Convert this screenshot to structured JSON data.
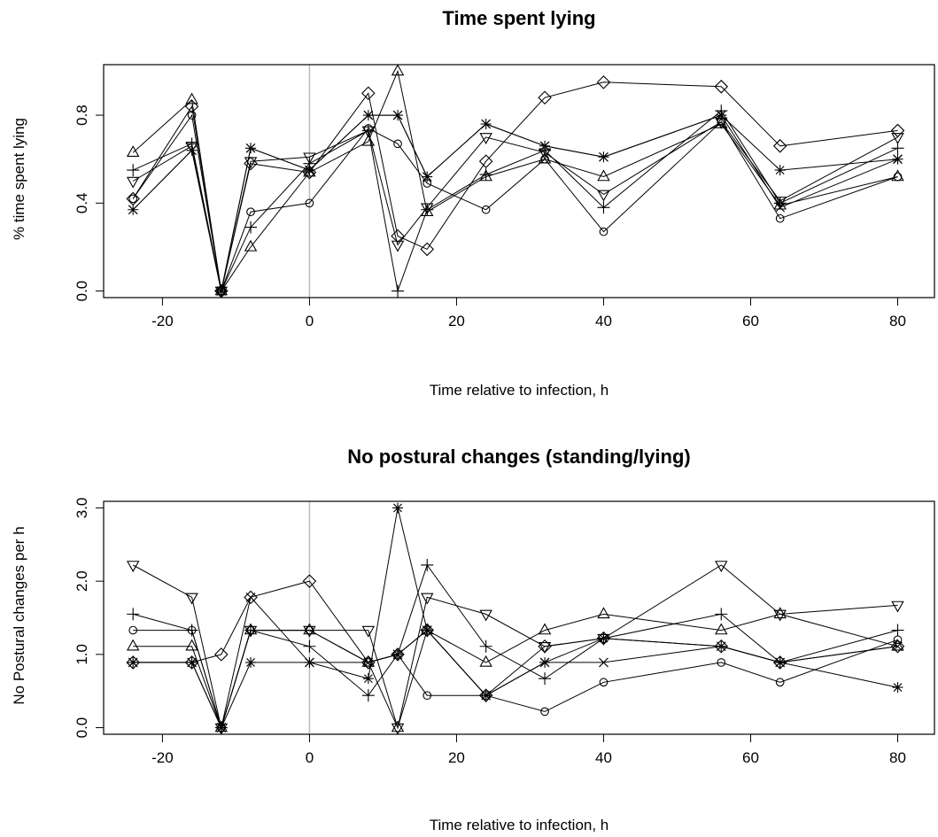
{
  "chart_data": [
    {
      "type": "line",
      "title": "Time spent lying",
      "xlabel": "Time relative to infection, h",
      "ylabel": "% time spent lying",
      "xlim": [
        -28,
        85
      ],
      "ylim": [
        -0.03,
        1.03
      ],
      "xticks": [
        -20,
        0,
        20,
        40,
        60,
        80
      ],
      "yticks": [
        0.0,
        0.4,
        0.8
      ],
      "ytick_labels": [
        "0.0",
        "0.4",
        "0.8"
      ],
      "vline": 0,
      "vline_color": "#bbbbbb",
      "grid": false,
      "series": [
        {
          "marker": "circle",
          "x": [
            -24,
            -16,
            -12,
            -8,
            0,
            8,
            12,
            16,
            24,
            32,
            40,
            56,
            64,
            80
          ],
          "y": [
            0.42,
            0.8,
            0.0,
            0.36,
            0.4,
            0.74,
            0.67,
            0.49,
            0.37,
            0.6,
            0.27,
            0.77,
            0.33,
            0.52
          ]
        },
        {
          "marker": "triangle-up",
          "x": [
            -24,
            -16,
            -12,
            -8,
            0,
            8,
            12,
            16,
            24,
            32,
            40,
            56,
            64,
            80
          ],
          "y": [
            0.63,
            0.87,
            0.0,
            0.2,
            0.54,
            0.68,
            1.0,
            0.36,
            0.52,
            0.6,
            0.52,
            0.76,
            0.39,
            0.52
          ]
        },
        {
          "marker": "plus",
          "x": [
            -24,
            -16,
            -12,
            -8,
            0,
            8,
            12,
            16,
            24,
            32,
            40,
            56,
            64,
            80
          ],
          "y": [
            0.55,
            0.67,
            0.0,
            0.29,
            0.58,
            0.73,
            0.0,
            0.37,
            0.53,
            0.64,
            0.38,
            0.82,
            0.4,
            0.65
          ]
        },
        {
          "marker": "x-cross",
          "x": [
            -24,
            -16,
            -12,
            -8,
            0,
            8,
            12,
            16,
            24,
            32,
            40,
            56,
            64,
            80
          ],
          "y": [
            0.37,
            0.64,
            0.0,
            0.65,
            0.55,
            0.8,
            0.8,
            0.52,
            0.76,
            0.66,
            0.61,
            0.8,
            0.38,
            0.6
          ]
        },
        {
          "marker": "diamond",
          "x": [
            -24,
            -16,
            -12,
            -8,
            0,
            8,
            12,
            16,
            24,
            32,
            40,
            56,
            64,
            80
          ],
          "y": [
            0.42,
            0.84,
            0.0,
            0.58,
            0.54,
            0.9,
            0.25,
            0.19,
            0.59,
            0.88,
            0.95,
            0.93,
            0.66,
            0.73
          ]
        },
        {
          "marker": "triangle-down",
          "x": [
            -24,
            -16,
            -12,
            -8,
            0,
            8,
            12,
            16,
            24,
            32,
            40,
            56,
            64,
            80
          ],
          "y": [
            0.5,
            0.66,
            0.0,
            0.59,
            0.61,
            0.73,
            0.21,
            0.38,
            0.7,
            0.63,
            0.44,
            0.77,
            0.41,
            0.7
          ]
        },
        {
          "marker": "asterisk",
          "x": [
            -24,
            -16,
            -12,
            -8,
            0,
            8,
            12,
            16,
            24,
            32,
            40,
            56,
            64,
            80
          ],
          "y": [
            0.37,
            0.64,
            0.0,
            0.65,
            0.55,
            0.8,
            0.8,
            0.52,
            0.76,
            0.66,
            0.61,
            0.8,
            0.55,
            0.6
          ]
        }
      ]
    },
    {
      "type": "line",
      "title": "No postural changes (standing/lying)",
      "xlabel": "Time relative to infection, h",
      "ylabel": "No Postural changes per h",
      "xlim": [
        -28,
        85
      ],
      "ylim": [
        -0.09,
        3.09
      ],
      "xticks": [
        -20,
        0,
        20,
        40,
        60,
        80
      ],
      "yticks": [
        0.0,
        1.0,
        2.0,
        3.0
      ],
      "ytick_labels": [
        "0.0",
        "1.0",
        "2.0",
        "3.0"
      ],
      "vline": 0,
      "vline_color": "#bbbbbb",
      "grid": false,
      "series": [
        {
          "marker": "circle",
          "x": [
            -24,
            -16,
            -12,
            -8,
            0,
            8,
            12,
            16,
            24,
            32,
            40,
            56,
            64,
            80
          ],
          "y": [
            1.33,
            1.33,
            0.0,
            1.33,
            1.33,
            0.89,
            1.0,
            0.44,
            0.44,
            0.22,
            0.62,
            0.89,
            0.62,
            1.2
          ]
        },
        {
          "marker": "triangle-up",
          "x": [
            -24,
            -16,
            -12,
            -8,
            0,
            8,
            12,
            16,
            24,
            32,
            40,
            56,
            64,
            80
          ],
          "y": [
            1.11,
            1.11,
            0.0,
            1.33,
            1.33,
            0.89,
            0.0,
            1.33,
            0.89,
            1.33,
            1.55,
            1.33,
            1.55,
            1.11
          ]
        },
        {
          "marker": "plus",
          "x": [
            -24,
            -16,
            -12,
            -8,
            0,
            8,
            12,
            16,
            24,
            32,
            40,
            56,
            64,
            80
          ],
          "y": [
            1.55,
            1.33,
            0.0,
            1.33,
            1.11,
            0.44,
            1.0,
            2.22,
            1.11,
            0.67,
            1.22,
            1.55,
            0.89,
            1.33
          ]
        },
        {
          "marker": "x-cross",
          "x": [
            -24,
            -16,
            -12,
            -8,
            0,
            8,
            12,
            16,
            24,
            32,
            40,
            56,
            64,
            80
          ],
          "y": [
            0.89,
            0.89,
            0.0,
            1.78,
            0.89,
            0.89,
            1.0,
            1.33,
            0.44,
            0.89,
            0.89,
            1.11,
            0.89,
            1.11
          ]
        },
        {
          "marker": "diamond",
          "x": [
            -24,
            -16,
            -12,
            -8,
            0,
            8,
            12,
            16,
            24,
            32,
            40,
            56,
            64,
            80
          ],
          "y": [
            0.89,
            0.89,
            1.0,
            1.78,
            2.0,
            0.89,
            1.0,
            1.33,
            0.44,
            1.11,
            1.22,
            1.11,
            0.89,
            1.11
          ]
        },
        {
          "marker": "triangle-down",
          "x": [
            -24,
            -16,
            -12,
            -8,
            0,
            8,
            12,
            16,
            24,
            32,
            40,
            56,
            64,
            80
          ],
          "y": [
            2.22,
            1.78,
            0.0,
            1.33,
            1.33,
            1.33,
            0.0,
            1.78,
            1.55,
            1.11,
            1.22,
            2.22,
            1.55,
            1.67
          ]
        },
        {
          "marker": "asterisk",
          "x": [
            -24,
            -16,
            -12,
            -8,
            0,
            8,
            12,
            16,
            24,
            32,
            40,
            56,
            64,
            80
          ],
          "y": [
            0.89,
            0.89,
            0.0,
            0.89,
            0.89,
            0.67,
            3.0,
            1.33,
            0.44,
            0.89,
            1.22,
            1.11,
            0.89,
            0.55
          ]
        }
      ]
    }
  ]
}
